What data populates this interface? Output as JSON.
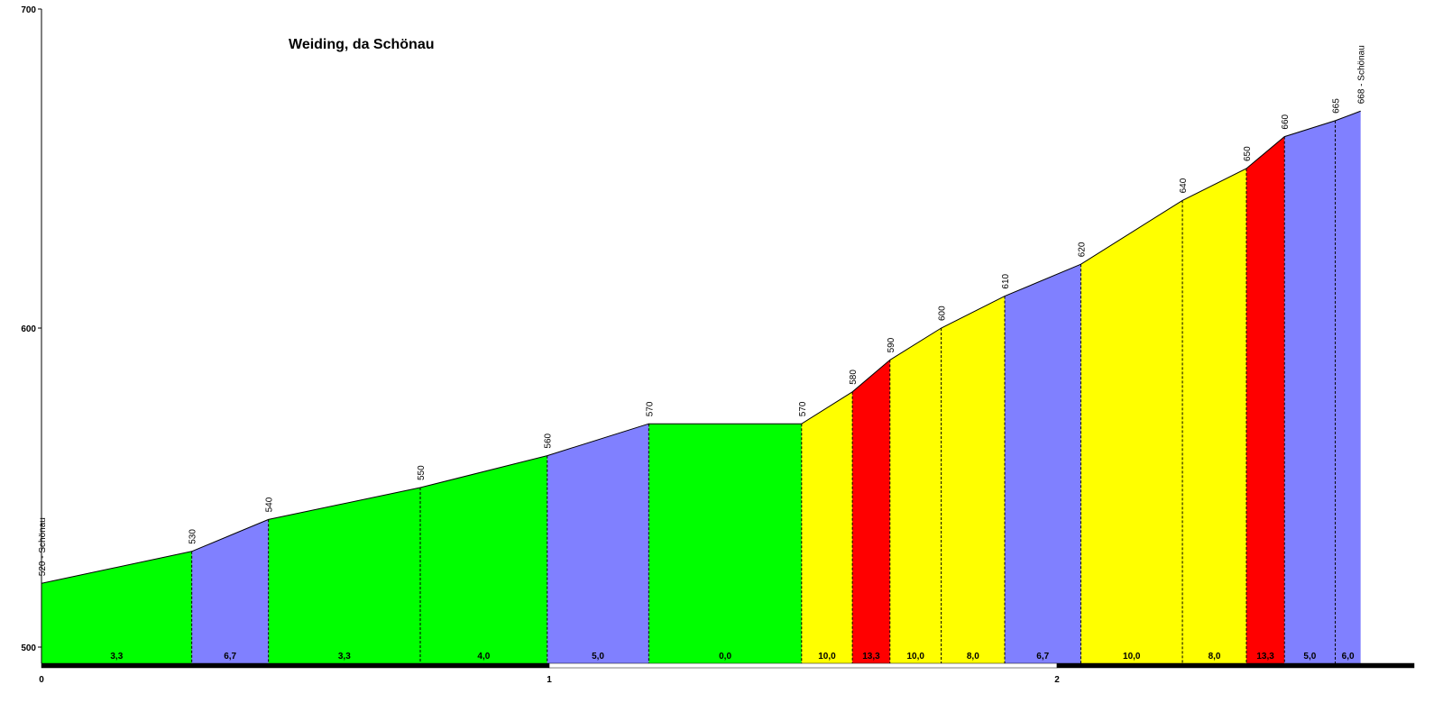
{
  "chart_data": {
    "type": "area",
    "title": "Weiding, da Schönau",
    "xlabel": "",
    "ylabel": "",
    "xlim": [
      0,
      2.7
    ],
    "ylim": [
      500,
      700
    ],
    "yticks": [
      {
        "value": 500,
        "label": "500"
      },
      {
        "value": 600,
        "label": "600"
      },
      {
        "value": 700,
        "label": "700"
      }
    ],
    "xticks": [
      {
        "value": 0,
        "label": "0"
      },
      {
        "value": 1,
        "label": "1"
      },
      {
        "value": 2,
        "label": "2"
      }
    ],
    "grid": false,
    "points": [
      {
        "x": 0.0,
        "y": 520,
        "label": "520 - Schönau"
      },
      {
        "x": 0.296,
        "y": 530,
        "label": "530"
      },
      {
        "x": 0.447,
        "y": 540,
        "label": "540"
      },
      {
        "x": 0.746,
        "y": 550,
        "label": "550"
      },
      {
        "x": 0.996,
        "y": 560,
        "label": "560"
      },
      {
        "x": 1.196,
        "y": 570,
        "label": "570"
      },
      {
        "x": 1.497,
        "y": 570,
        "label": "570"
      },
      {
        "x": 1.597,
        "y": 580,
        "label": "580"
      },
      {
        "x": 1.671,
        "y": 590,
        "label": "590"
      },
      {
        "x": 1.772,
        "y": 600,
        "label": "600"
      },
      {
        "x": 1.897,
        "y": 610,
        "label": "610"
      },
      {
        "x": 2.047,
        "y": 620,
        "label": "620"
      },
      {
        "x": 2.247,
        "y": 640,
        "label": "640"
      },
      {
        "x": 2.373,
        "y": 650,
        "label": "650"
      },
      {
        "x": 2.448,
        "y": 660,
        "label": "660"
      },
      {
        "x": 2.548,
        "y": 665,
        "label": "665"
      },
      {
        "x": 2.598,
        "y": 668,
        "label": "668 - Schönau"
      }
    ],
    "segments": [
      {
        "gradient": "3,3",
        "color": "#00ff00"
      },
      {
        "gradient": "6,7",
        "color": "#8080ff"
      },
      {
        "gradient": "3,3",
        "color": "#00ff00"
      },
      {
        "gradient": "4,0",
        "color": "#00ff00"
      },
      {
        "gradient": "5,0",
        "color": "#8080ff"
      },
      {
        "gradient": "0,0",
        "color": "#00ff00"
      },
      {
        "gradient": "10,0",
        "color": "#ffff00"
      },
      {
        "gradient": "13,3",
        "color": "#ff0000"
      },
      {
        "gradient": "10,0",
        "color": "#ffff00"
      },
      {
        "gradient": "8,0",
        "color": "#ffff00"
      },
      {
        "gradient": "6,7",
        "color": "#8080ff"
      },
      {
        "gradient": "10,0",
        "color": "#ffff00"
      },
      {
        "gradient": "8,0",
        "color": "#ffff00"
      },
      {
        "gradient": "13,3",
        "color": "#ff0000"
      },
      {
        "gradient": "5,0",
        "color": "#8080ff"
      },
      {
        "gradient": "6,0",
        "color": "#8080ff"
      }
    ]
  }
}
